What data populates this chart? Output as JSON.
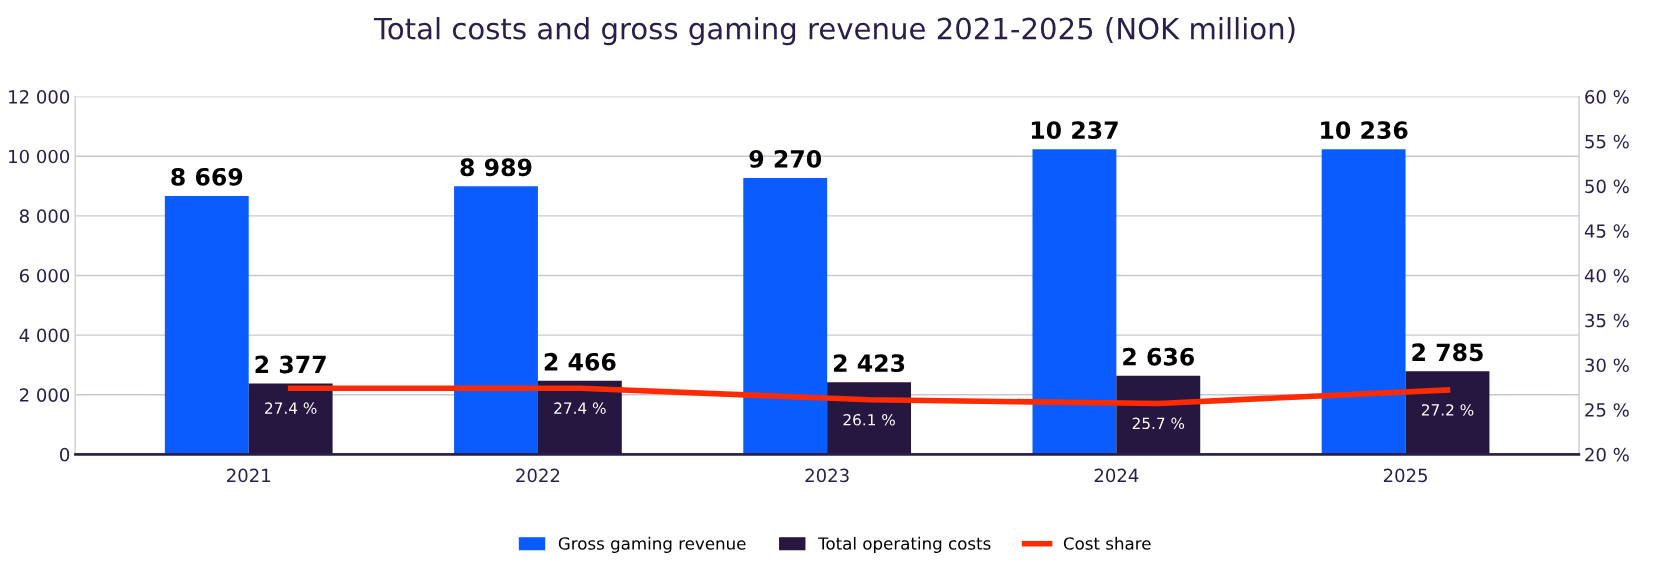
{
  "chart_data": {
    "type": "bar",
    "title": "Total costs and gross gaming revenue 2021-2025 (NOK million)",
    "categories": [
      "2021",
      "2022",
      "2023",
      "2024",
      "2025"
    ],
    "series": [
      {
        "name": "Gross gaming revenue",
        "color": "#0b5cff",
        "values": [
          8669,
          8989,
          9270,
          10237,
          10236
        ],
        "value_labels": [
          "8 669",
          "8 989",
          "9 270",
          "10 237",
          "10 236"
        ]
      },
      {
        "name": "Total operating costs",
        "color": "#25173f",
        "values": [
          2377,
          2466,
          2423,
          2636,
          2785
        ],
        "value_labels": [
          "2 377",
          "2 466",
          "2 423",
          "2 636",
          "2 785"
        ]
      },
      {
        "name": "Cost share",
        "type": "line",
        "axis": "y2",
        "color": "#ff2a00",
        "values": [
          27.4,
          27.4,
          26.1,
          25.7,
          27.2
        ],
        "value_labels": [
          "27.4 %",
          "27.4 %",
          "26.1 %",
          "25.7 %",
          "27.2 %"
        ]
      }
    ],
    "ylim": [
      0,
      12000
    ],
    "yticks": [
      {
        "value": 0,
        "label": "0"
      },
      {
        "value": 2000,
        "label": "2 000"
      },
      {
        "value": 4000,
        "label": "4 000"
      },
      {
        "value": 6000,
        "label": "6 000"
      },
      {
        "value": 8000,
        "label": "8 000"
      },
      {
        "value": 10000,
        "label": "10 000"
      },
      {
        "value": 12000,
        "label": "12 000"
      }
    ],
    "y2lim": [
      20,
      60
    ],
    "y2ticks": [
      {
        "value": 20,
        "label": "20 %"
      },
      {
        "value": 25,
        "label": "25 %"
      },
      {
        "value": 30,
        "label": "30 %"
      },
      {
        "value": 35,
        "label": "35 %"
      },
      {
        "value": 40,
        "label": "40 %"
      },
      {
        "value": 45,
        "label": "45 %"
      },
      {
        "value": 50,
        "label": "50 %"
      },
      {
        "value": 55,
        "label": "55 %"
      },
      {
        "value": 60,
        "label": "60 %"
      }
    ],
    "grid": "y",
    "legend": "bottom",
    "marker": "none"
  }
}
